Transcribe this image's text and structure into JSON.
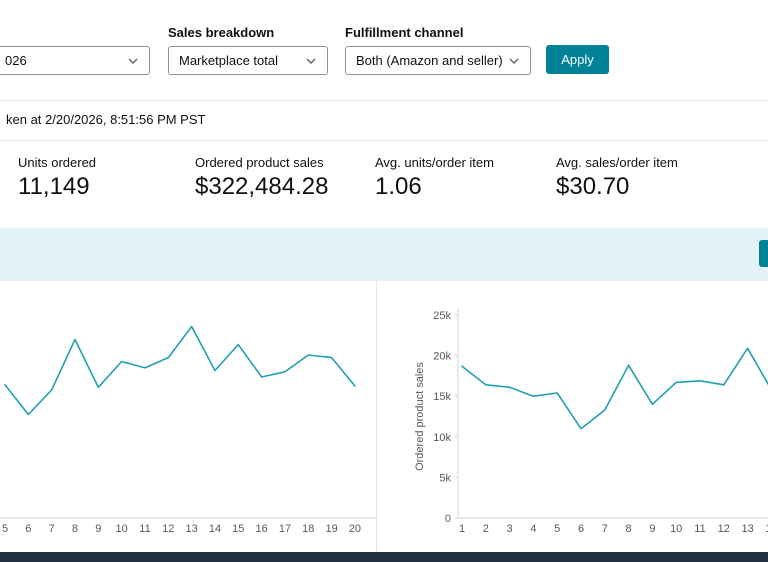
{
  "filters": {
    "date_range": {
      "value": "026"
    },
    "sales_breakdown": {
      "label": "Sales breakdown",
      "value": "Marketplace total"
    },
    "fulfillment_channel": {
      "label": "Fulfillment channel",
      "value": "Both (Amazon and seller)"
    },
    "apply_label": "Apply"
  },
  "snapshot_note": "ken at 2/20/2026, 8:51:56 PM PST",
  "stats": [
    {
      "label": "Units ordered",
      "value": "11,149"
    },
    {
      "label": "Ordered product sales",
      "value": "$322,484.28"
    },
    {
      "label": "Avg. units/order item",
      "value": "1.06"
    },
    {
      "label": "Avg. sales/order item",
      "value": "$30.70"
    }
  ],
  "colors": {
    "accent_teal": "#008296",
    "chart_line": "#21a0b4",
    "band_blue": "#e3f1f8",
    "footer_navy": "#232f3e"
  },
  "chart_data": [
    {
      "type": "line",
      "title": "",
      "x": [
        5,
        6,
        7,
        8,
        9,
        10,
        11,
        12,
        13,
        14,
        15,
        16,
        17,
        18,
        19,
        20
      ],
      "values": [
        515,
        400,
        495,
        690,
        505,
        605,
        580,
        620,
        740,
        570,
        670,
        545,
        565,
        630,
        620,
        510
      ],
      "ylim": [
        0,
        800
      ],
      "xlabel": "",
      "ylabel": "",
      "grid": false,
      "legend": "none",
      "line_color": "#21a0b4"
    },
    {
      "type": "line",
      "title": "",
      "x": [
        1,
        2,
        3,
        4,
        5,
        6,
        7,
        8,
        9,
        10,
        11,
        12,
        13,
        14
      ],
      "values": [
        18700,
        16400,
        16100,
        15000,
        15400,
        11000,
        13300,
        18800,
        14000,
        16700,
        16900,
        16400,
        20900,
        15800
      ],
      "ylim": [
        0,
        25000
      ],
      "ytick_values": [
        0,
        5000,
        10000,
        15000,
        20000,
        25000
      ],
      "ytick_labels": [
        "0",
        "5k",
        "10k",
        "15k",
        "20k",
        "25k"
      ],
      "xlabel": "",
      "ylabel": "Ordered product sales",
      "grid": false,
      "legend": "none",
      "line_color": "#21a0b4"
    }
  ]
}
